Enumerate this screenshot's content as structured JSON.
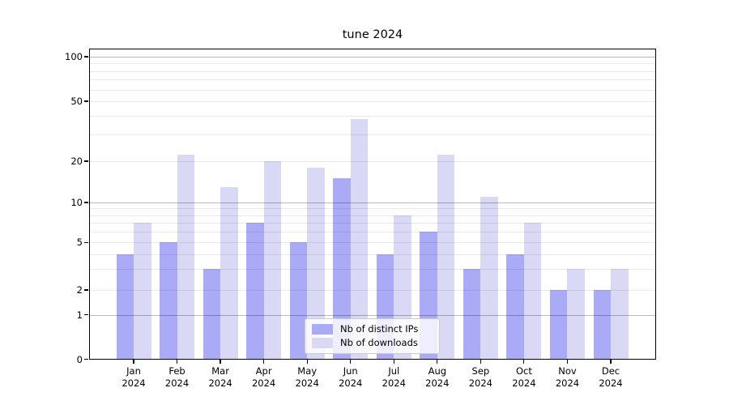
{
  "figure": {
    "title": "tune 2024"
  },
  "chart_data": {
    "type": "bar",
    "title": "tune 2024",
    "categories": [
      "Jan 2024",
      "Feb 2024",
      "Mar 2024",
      "Apr 2024",
      "May 2024",
      "Jun 2024",
      "Jul 2024",
      "Aug 2024",
      "Sep 2024",
      "Oct 2024",
      "Nov 2024",
      "Dec 2024"
    ],
    "series": [
      {
        "name": "Nb of distinct IPs",
        "color": "#aaaaf6",
        "values": [
          4,
          5,
          3,
          7,
          5,
          15,
          4,
          6,
          3,
          4,
          2,
          2
        ]
      },
      {
        "name": "Nb of downloads",
        "color": "#d9d9f6",
        "values": [
          7,
          22,
          13,
          20,
          18,
          38,
          8,
          22,
          11,
          7,
          3,
          3
        ]
      }
    ],
    "yaxis": {
      "scale": "log-like with zero",
      "ylim": [
        0,
        110
      ],
      "tick_values": [
        0,
        1,
        2,
        5,
        10,
        20,
        50,
        100
      ],
      "tick_labels": [
        "0",
        "1",
        "2",
        "5",
        "10",
        "20",
        "50",
        "100"
      ],
      "major_gridline_values": [
        1,
        10,
        100
      ],
      "minor_gridline_values": [
        2,
        3,
        4,
        5,
        6,
        7,
        8,
        9,
        20,
        30,
        40,
        50,
        60,
        70,
        80,
        90
      ]
    },
    "xlabel": "",
    "ylabel": "",
    "grid": "on",
    "legend_position": "lower center"
  }
}
